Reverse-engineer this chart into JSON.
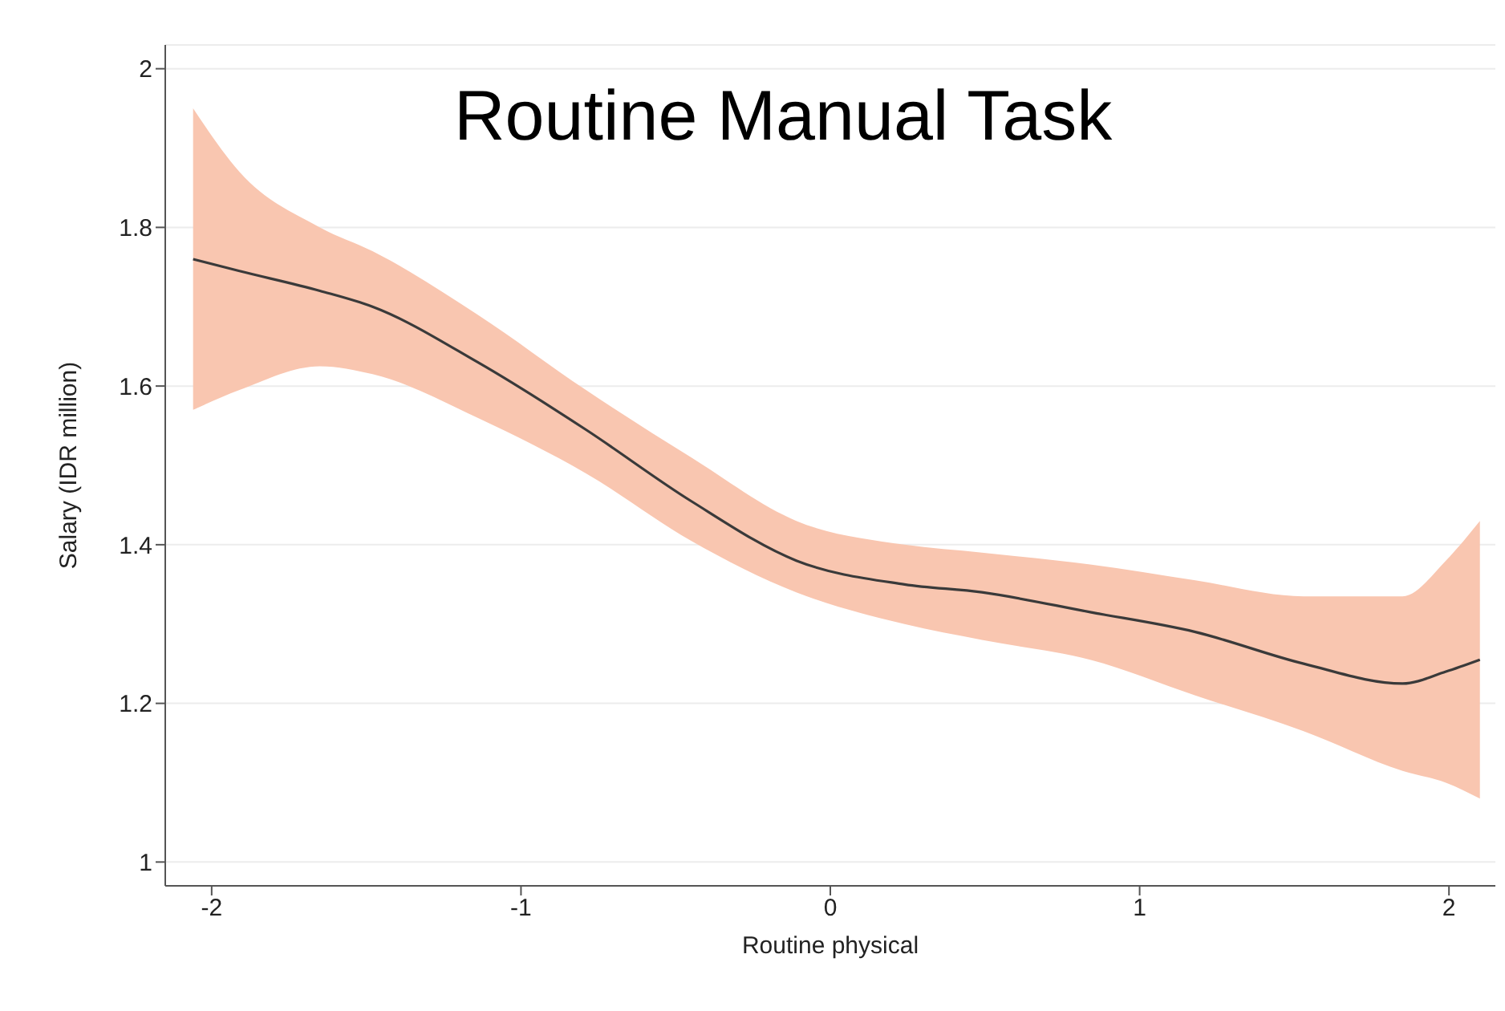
{
  "chart_data": {
    "type": "line",
    "title": "Routine Manual Task",
    "xlabel": "Routine physical",
    "ylabel": "Salary (IDR million)",
    "x": [
      -2.06,
      -1.91,
      -1.65,
      -1.48,
      -1.14,
      -0.79,
      -0.45,
      -0.11,
      0.24,
      0.49,
      0.84,
      1.18,
      1.53,
      1.85,
      1.99,
      2.1
    ],
    "series": [
      {
        "color": "#3a3a3a",
        "values": [
          1.76,
          1.745,
          1.72,
          1.7,
          1.63,
          1.545,
          1.455,
          1.38,
          1.35,
          1.34,
          1.315,
          1.29,
          1.25,
          1.225,
          1.24,
          1.255
        ],
        "lower": [
          1.57,
          1.595,
          1.625,
          1.615,
          1.56,
          1.49,
          1.405,
          1.34,
          1.3,
          1.28,
          1.255,
          1.21,
          1.165,
          1.115,
          1.1,
          1.08
        ],
        "upper": [
          1.95,
          1.87,
          1.8,
          1.77,
          1.69,
          1.595,
          1.51,
          1.43,
          1.4,
          1.39,
          1.375,
          1.355,
          1.335,
          1.335,
          1.38,
          1.43
        ]
      }
    ],
    "xlim": [
      -2.15,
      2.15
    ],
    "xticks": [
      -2,
      -1,
      0,
      1,
      2
    ],
    "ylim": [
      0.97,
      2.03
    ],
    "yticks": [
      1,
      1.2,
      1.4,
      1.6,
      1.8,
      2
    ],
    "grid": "y",
    "marker": "none",
    "line_style": "solid"
  }
}
